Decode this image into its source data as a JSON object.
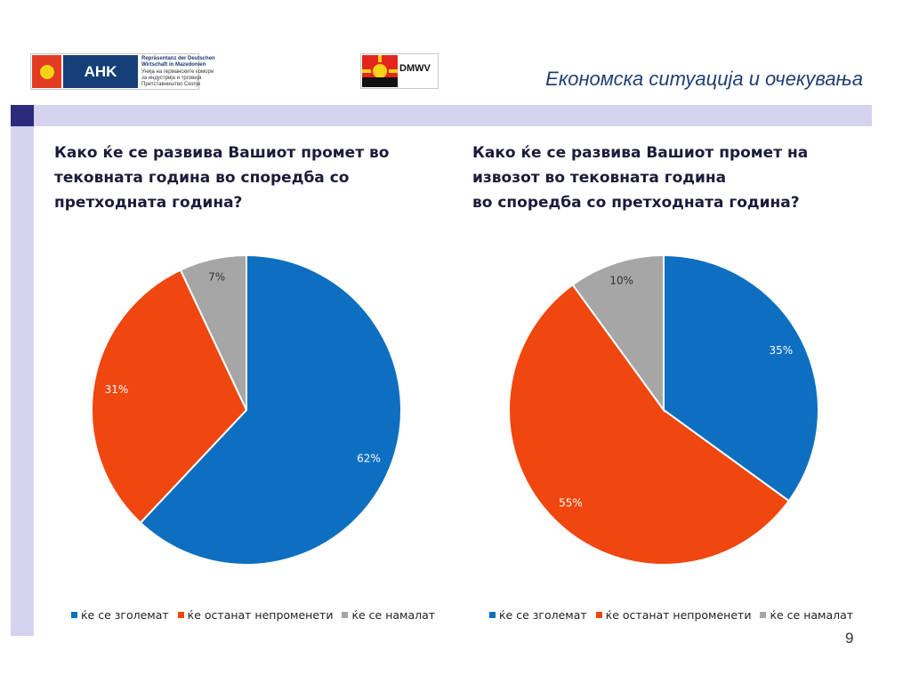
{
  "header": {
    "title": "Економска ситуација и очекувања",
    "ahk_logo": {
      "badge": "AHK",
      "line1": "Repräsentanz der Deutschen",
      "line1b": "Wirtschaft in Mazedonien",
      "line2": "Унија на германските комори",
      "line3": "за индустрија и трговија",
      "line4": "Претставништво Скопје"
    },
    "dmwv_logo": {
      "text": "DMWV"
    }
  },
  "colors": {
    "increase": "#0e6fc1",
    "same": "#f0460f",
    "decrease": "#a6a6a6",
    "accent_bar": "#d5d3ee",
    "accent_dark": "#2b2a7c"
  },
  "page_number": "9",
  "chart_data": [
    {
      "type": "pie",
      "title": "Како ќе се развива Вашиот промет  во\nтековната година во споредба со\nпретходната година?",
      "categories": [
        "ќе се зголемат",
        "ќе останат непроменети",
        "ќе се намалат"
      ],
      "values": [
        62,
        31,
        7
      ],
      "data_labels": [
        "62%",
        "31%",
        "7%"
      ],
      "legend_position": "bottom"
    },
    {
      "type": "pie",
      "title": "Како ќе се развива Вашиот промет на\nизвозот во тековната година\nво споредба со претходната година?",
      "categories": [
        "ќе се зголемат",
        "ќе останат непроменети",
        "ќе се намалат"
      ],
      "values": [
        35,
        55,
        10
      ],
      "data_labels": [
        "35%",
        "55%",
        "10%"
      ],
      "legend_position": "bottom"
    }
  ]
}
